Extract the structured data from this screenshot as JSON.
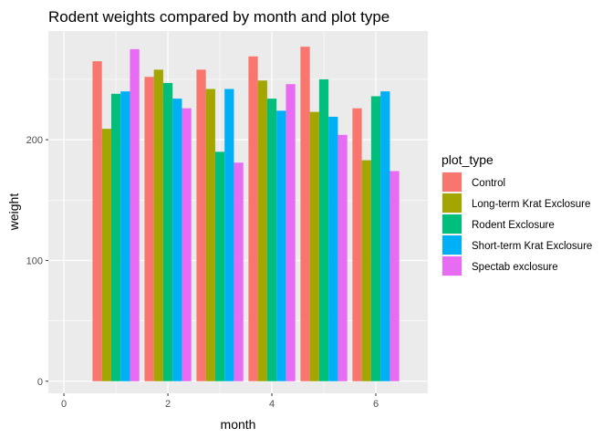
{
  "chart_data": {
    "type": "bar",
    "title": "Rodent weights compared by month and plot type",
    "xlabel": "month",
    "ylabel": "weight",
    "categories": [
      1,
      2,
      3,
      4,
      5,
      6
    ],
    "x_ticks": [
      "0",
      "2",
      "4",
      "6"
    ],
    "y_ticks": [
      "0",
      "100",
      "200"
    ],
    "xlim": [
      -0.3,
      7.0
    ],
    "ylim": [
      -10,
      290
    ],
    "grid": true,
    "legend_position": "right",
    "legend_title": "plot_type",
    "series": [
      {
        "name": "Control",
        "color": "#F8766D",
        "values": [
          265,
          252,
          258,
          269,
          277,
          226
        ]
      },
      {
        "name": "Long-term Krat Exclosure",
        "color": "#A3A500",
        "values": [
          209,
          258,
          242,
          249,
          223,
          183
        ]
      },
      {
        "name": "Rodent Exclosure",
        "color": "#00BF7D",
        "values": [
          238,
          247,
          190,
          234,
          250,
          236
        ]
      },
      {
        "name": "Short-term Krat Exclosure",
        "color": "#00B0F6",
        "values": [
          240,
          234,
          242,
          224,
          219,
          240
        ]
      },
      {
        "name": "Spectab exclosure",
        "color": "#E76BF3",
        "values": [
          275,
          226,
          181,
          246,
          204,
          174
        ]
      }
    ]
  }
}
